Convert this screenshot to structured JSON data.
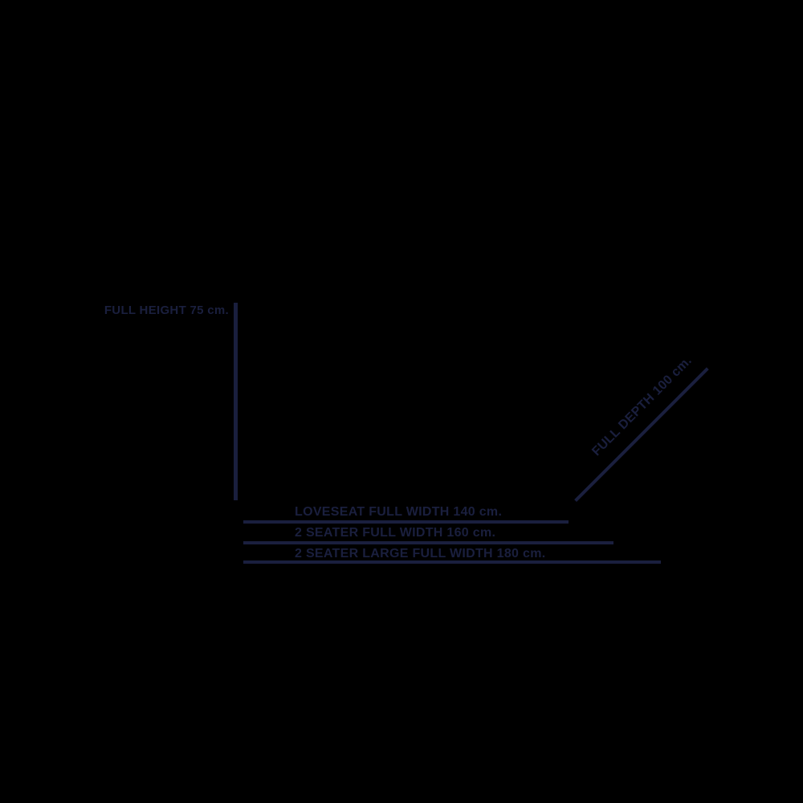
{
  "colors": {
    "background": "#000000",
    "ink": "#1a1f3e"
  },
  "labels": {
    "full_height": "FULL HEIGHT 75 cm.",
    "full_depth": "FULL DEPTH 100 cm.",
    "loveseat_width": "LOVESEAT FULL WIDTH 140 cm.",
    "two_seater_width": "2 SEATER FULL WIDTH 160 cm.",
    "two_seater_large_width": "2 SEATER LARGE FULL WIDTH 180 cm."
  },
  "dimensions_cm": {
    "full_height": 75,
    "full_depth": 100,
    "loveseat_full_width": 140,
    "two_seater_full_width": 160,
    "two_seater_large_full_width": 180
  }
}
